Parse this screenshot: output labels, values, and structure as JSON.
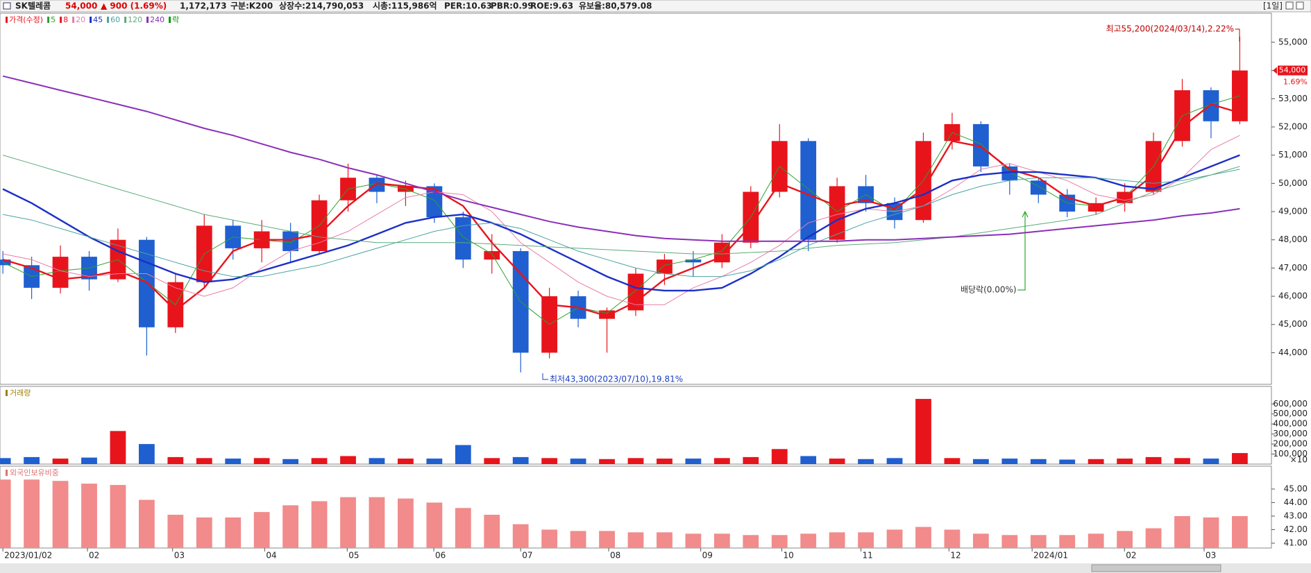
{
  "header": {
    "name": "SK텔레콤",
    "price": "54,000",
    "change": "▲ 900 (1.69%)",
    "volume": "1,172,173",
    "market": "구분:K200",
    "shares": "상장수:214,790,053",
    "market_cap": "시총:115,986억",
    "per": "PER:10.63",
    "pbr": "PBR:0.99",
    "roe": "ROE:9.63",
    "reserve_ratio": "유보율:80,579.08",
    "period": "[1일]"
  },
  "chart_data": [
    {
      "type": "candlestick",
      "candle_name": "가격(수정)",
      "candle_color": "#e8141c",
      "ex_rights_name": "락",
      "ex_rights_color": "#009a00",
      "up_color": "#e8141c",
      "down_color": "#1f5fd0",
      "current_change": "1.69%",
      "annotations": [
        "최고55,200(2024/03/14),2.22%",
        "최저43,300(2023/07/10),19.81%",
        "배당락(0.00%)"
      ],
      "open": [
        47300,
        47100,
        46300,
        47400,
        46600,
        48000,
        44900,
        46500,
        48500,
        47700,
        48300,
        47600,
        49400,
        50200,
        49700,
        49900,
        48800,
        47300,
        47600,
        44000,
        46000,
        45200,
        45500,
        46800,
        47300,
        47200,
        47900,
        49700,
        51500,
        48000,
        49900,
        49300,
        48700,
        51500,
        52100,
        50600,
        50100,
        49600,
        49000,
        49300,
        49700,
        51500,
        53300,
        52200
      ],
      "high": [
        47600,
        47400,
        47800,
        47600,
        48400,
        48100,
        46800,
        48900,
        48700,
        48700,
        48600,
        49600,
        50700,
        50300,
        50100,
        50000,
        49000,
        48200,
        47700,
        46300,
        46200,
        45600,
        47000,
        47500,
        47600,
        48200,
        49900,
        52100,
        51600,
        50200,
        50300,
        49500,
        51800,
        52500,
        52200,
        50700,
        50200,
        49800,
        49500,
        50000,
        51800,
        53700,
        53400,
        55200
      ],
      "low": [
        46800,
        45900,
        46100,
        46200,
        46500,
        43900,
        44700,
        46300,
        47300,
        47200,
        47200,
        47500,
        49000,
        49300,
        49200,
        48600,
        47000,
        46800,
        43300,
        43800,
        44900,
        44000,
        45300,
        46400,
        46700,
        47000,
        47700,
        49500,
        47600,
        47900,
        49000,
        48400,
        48600,
        51200,
        50400,
        49600,
        49300,
        48800,
        48900,
        49000,
        49600,
        51300,
        51600,
        52100
      ],
      "close": [
        47100,
        46300,
        47400,
        46600,
        48000,
        44900,
        46500,
        48500,
        47700,
        48300,
        47600,
        49400,
        50200,
        49700,
        49900,
        48800,
        47300,
        47600,
        44000,
        46000,
        45200,
        45500,
        46800,
        47300,
        47200,
        47900,
        49700,
        51500,
        48000,
        49900,
        49300,
        48700,
        51500,
        52100,
        50600,
        50100,
        49600,
        49000,
        49300,
        49700,
        51500,
        53300,
        52200,
        54000
      ],
      "series": [
        {
          "name": "5",
          "color": "#2ca02c",
          "values": [
            47200,
            46700,
            46900,
            47000,
            47300,
            46500,
            45700,
            47500,
            48100,
            48000,
            47900,
            48500,
            49800,
            50000,
            49800,
            49400,
            48100,
            47500,
            45800,
            45000,
            45600,
            45400,
            46200,
            47100,
            47300,
            47600,
            48800,
            50600,
            49800,
            49000,
            49600,
            49000,
            50100,
            51800,
            51400,
            50400,
            49900,
            49300,
            49200,
            49500,
            50600,
            52400,
            52800,
            53100
          ]
        },
        {
          "name": "8",
          "color": "#e8141c",
          "values": [
            47300,
            47000,
            46600,
            46700,
            46900,
            46500,
            45500,
            46300,
            47600,
            48000,
            48000,
            48200,
            49200,
            50000,
            49900,
            49800,
            49200,
            47900,
            46800,
            45700,
            45600,
            45300,
            45800,
            46600,
            47000,
            47400,
            48500,
            50000,
            49600,
            49200,
            49400,
            49100,
            49800,
            51500,
            51300,
            50500,
            50200,
            49500,
            49200,
            49500,
            50300,
            52000,
            52800,
            52500
          ]
        },
        {
          "name": "20",
          "color": "#e87ca8",
          "values": [
            47500,
            47300,
            46900,
            46700,
            46800,
            46800,
            46300,
            46000,
            46300,
            47000,
            47600,
            47900,
            48300,
            48900,
            49500,
            49700,
            49600,
            49000,
            47900,
            47200,
            46500,
            46000,
            45700,
            45700,
            46300,
            46700,
            47200,
            47800,
            48600,
            48900,
            49100,
            49000,
            49200,
            49800,
            50500,
            50700,
            50400,
            50100,
            49600,
            49400,
            49600,
            50200,
            51200,
            51700
          ]
        },
        {
          "name": "45",
          "color": "#1c2fc8",
          "values": [
            49800,
            49300,
            48700,
            48100,
            47600,
            47200,
            46800,
            46500,
            46600,
            46900,
            47200,
            47500,
            47800,
            48200,
            48600,
            48800,
            48900,
            48600,
            48200,
            47700,
            47200,
            46700,
            46300,
            46200,
            46200,
            46300,
            46800,
            47400,
            48100,
            48700,
            49100,
            49300,
            49600,
            50100,
            50300,
            50400,
            50400,
            50300,
            50200,
            49900,
            49800,
            50200,
            50600,
            51000
          ]
        },
        {
          "name": "60",
          "color": "#4aa3a3",
          "values": [
            48900,
            48700,
            48400,
            48100,
            47800,
            47500,
            47200,
            46900,
            46700,
            46700,
            46900,
            47100,
            47400,
            47700,
            48000,
            48300,
            48500,
            48600,
            48400,
            48000,
            47600,
            47300,
            47000,
            46800,
            46700,
            46700,
            46900,
            47300,
            47800,
            48200,
            48600,
            48900,
            49200,
            49600,
            49900,
            50100,
            50200,
            50200,
            50200,
            50100,
            50000,
            50100,
            50300,
            50500
          ]
        },
        {
          "name": "120",
          "color": "#5bab7a",
          "values": [
            51000,
            50700,
            50400,
            50100,
            49800,
            49500,
            49200,
            48900,
            48700,
            48500,
            48300,
            48100,
            48000,
            47900,
            47900,
            47900,
            47900,
            47850,
            47800,
            47750,
            47700,
            47650,
            47600,
            47550,
            47500,
            47500,
            47550,
            47600,
            47700,
            47800,
            47850,
            47900,
            48000,
            48100,
            48250,
            48400,
            48550,
            48700,
            48900,
            49300,
            49700,
            50000,
            50300,
            50600
          ]
        },
        {
          "name": "240",
          "color": "#8a2fb8",
          "values": [
            53800,
            53550,
            53300,
            53050,
            52800,
            52550,
            52250,
            51950,
            51700,
            51400,
            51100,
            50850,
            50550,
            50300,
            50000,
            49700,
            49400,
            49150,
            48900,
            48650,
            48450,
            48300,
            48150,
            48050,
            48000,
            47950,
            47950,
            47950,
            47950,
            47950,
            48000,
            48000,
            48050,
            48100,
            48150,
            48200,
            48300,
            48400,
            48500,
            48600,
            48700,
            48850,
            48950,
            49100
          ]
        }
      ],
      "ylim": [
        42880,
        56030
      ],
      "yticks": [
        {
          "value": 44000,
          "label": "44,000"
        },
        {
          "value": 45000,
          "label": "45,000"
        },
        {
          "value": 46000,
          "label": "46,000"
        },
        {
          "value": 47000,
          "label": "47,000"
        },
        {
          "value": 48000,
          "label": "48,000"
        },
        {
          "value": 49000,
          "label": "49,000"
        },
        {
          "value": 50000,
          "label": "50,000"
        },
        {
          "value": 51000,
          "label": "51,000"
        },
        {
          "value": 52000,
          "label": "52,000"
        },
        {
          "value": 53000,
          "label": "53,000"
        },
        {
          "value": 54000,
          "label": "54,000"
        },
        {
          "value": 55000,
          "label": "55,000"
        }
      ],
      "grid": false
    },
    {
      "type": "bar",
      "title": "거래량",
      "title_color": "#a08000",
      "unit_note": "×10",
      "values": [
        60000,
        70000,
        55000,
        65000,
        330000,
        200000,
        70000,
        60000,
        55000,
        60000,
        50000,
        60000,
        80000,
        60000,
        55000,
        55000,
        190000,
        60000,
        70000,
        60000,
        55000,
        50000,
        60000,
        55000,
        55000,
        60000,
        70000,
        150000,
        80000,
        55000,
        50000,
        60000,
        650000,
        60000,
        50000,
        55000,
        50000,
        45000,
        50000,
        55000,
        70000,
        60000,
        55000,
        110000
      ],
      "ylim": [
        0,
        775000
      ],
      "yticks": [
        {
          "value": 100000,
          "label": "100,000"
        },
        {
          "value": 200000,
          "label": "200,000"
        },
        {
          "value": 300000,
          "label": "300,000"
        },
        {
          "value": 400000,
          "label": "400,000"
        },
        {
          "value": 500000,
          "label": "500,000"
        },
        {
          "value": 600000,
          "label": "600,000"
        }
      ],
      "grid": false
    },
    {
      "type": "bar",
      "title": "외국인보유비중",
      "title_color": "#e07070",
      "color": "#f28b8b",
      "values": [
        45.7,
        45.7,
        45.6,
        45.4,
        45.3,
        44.2,
        43.1,
        42.9,
        42.9,
        43.3,
        43.8,
        44.1,
        44.4,
        44.4,
        44.3,
        44.0,
        43.6,
        43.1,
        42.4,
        42.0,
        41.9,
        41.9,
        41.8,
        41.8,
        41.7,
        41.7,
        41.6,
        41.6,
        41.7,
        41.8,
        41.8,
        42.0,
        42.2,
        42.0,
        41.7,
        41.6,
        41.6,
        41.6,
        41.7,
        41.9,
        42.1,
        43.0,
        42.9,
        43.0
      ],
      "ylim": [
        40.64,
        46.69
      ],
      "yticks": [
        {
          "value": 41,
          "label": "41.00"
        },
        {
          "value": 42,
          "label": "42.00"
        },
        {
          "value": 43,
          "label": "43.00"
        },
        {
          "value": 44,
          "label": "44.00"
        },
        {
          "value": 45,
          "label": "45.00"
        }
      ],
      "xlim": [
        -0.1,
        44.1
      ],
      "xticks": [
        {
          "value": 0,
          "label": "2023/01/02"
        },
        {
          "value": 2.94,
          "label": "02"
        },
        {
          "value": 5.9,
          "label": "03"
        },
        {
          "value": 9.1,
          "label": "04"
        },
        {
          "value": 11.97,
          "label": "05"
        },
        {
          "value": 14.98,
          "label": "06"
        },
        {
          "value": 18.0,
          "label": "07"
        },
        {
          "value": 21.06,
          "label": "08"
        },
        {
          "value": 24.26,
          "label": "09"
        },
        {
          "value": 27.08,
          "label": "10"
        },
        {
          "value": 29.83,
          "label": "11"
        },
        {
          "value": 32.89,
          "label": "12"
        },
        {
          "value": 35.78,
          "label": "2024/01"
        },
        {
          "value": 38.99,
          "label": "02"
        },
        {
          "value": 41.76,
          "label": "03"
        }
      ],
      "grid": false
    }
  ]
}
